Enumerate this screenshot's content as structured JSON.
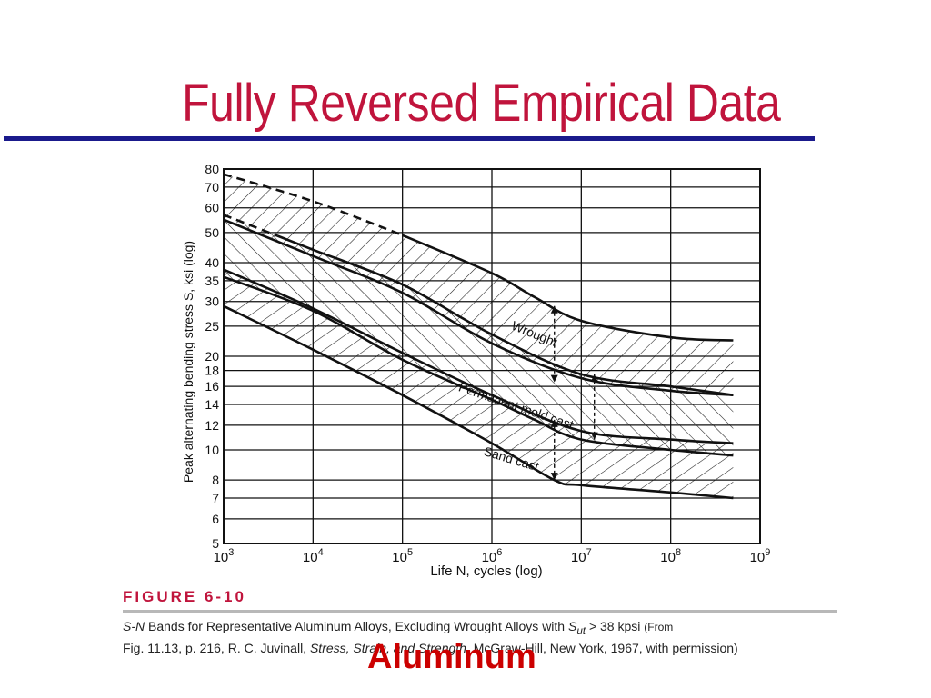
{
  "slide": {
    "title": "Fully Reversed Empirical Data",
    "footer": "Aluminum",
    "title_color": "#c0143c",
    "rule_color": "#1a1a8c"
  },
  "figure": {
    "label": "FIGURE 6-10",
    "caption_lead_italic": "S-N",
    "caption_main": "Bands for Representative Aluminum Alloys, Excluding Wrought Alloys with",
    "caption_symbol": "S",
    "caption_subscript": "ut",
    "caption_limit": "> 38 kpsi",
    "caption_source_1": "(From",
    "caption_source_2": "Fig. 11.13, p. 216, R. C. Juvinall,",
    "caption_book_italic": "Stress, Strain, and Strength",
    "caption_source_3": ". McGraw-Hill, New York, 1967, with permission)"
  },
  "chart_data": {
    "type": "line",
    "x_scale": "log",
    "y_scale": "log",
    "xlim": [
      1000,
      1000000000
    ],
    "ylim": [
      5,
      80
    ],
    "grid": true,
    "xlabel": "Life N, cycles (log)",
    "ylabel": "Peak alternating bending stress S, ksi (log)",
    "x_ticks": [
      {
        "value": 1000,
        "label": "3"
      },
      {
        "value": 10000,
        "label": "4"
      },
      {
        "value": 100000,
        "label": "5"
      },
      {
        "value": 1000000,
        "label": "6"
      },
      {
        "value": 10000000,
        "label": "7"
      },
      {
        "value": 100000000,
        "label": "8"
      },
      {
        "value": 1000000000,
        "label": "9"
      }
    ],
    "y_ticks": [
      5,
      6,
      7,
      8,
      10,
      12,
      14,
      16,
      18,
      20,
      25,
      30,
      35,
      40,
      50,
      60,
      70,
      80
    ],
    "bands": [
      {
        "name": "Wrought",
        "upper": {
          "x": [
            1000,
            10000,
            100000,
            1000000,
            3000000,
            10000000,
            100000000,
            500000000
          ],
          "y": [
            77,
            63,
            49,
            37,
            31,
            26,
            23,
            22.5
          ],
          "dashed_until": 100000
        },
        "lower": {
          "x": [
            1000,
            10000,
            100000,
            1000000,
            10000000,
            100000000,
            500000000
          ],
          "y": [
            55,
            42,
            32,
            22,
            17,
            15.5,
            15
          ]
        }
      },
      {
        "name": "Permanent mold cast",
        "upper": {
          "x": [
            1000,
            10000,
            100000,
            1000000,
            10000000,
            100000000,
            500000000
          ],
          "y": [
            57,
            44,
            34,
            23.5,
            17.5,
            16,
            15
          ],
          "dashed_until": 4000
        },
        "lower": {
          "x": [
            1000,
            10000,
            100000,
            1000000,
            3000000,
            10000000,
            100000000,
            500000000
          ],
          "y": [
            36,
            28,
            19.5,
            14.5,
            12.5,
            10.8,
            10,
            9.6
          ]
        }
      },
      {
        "name": "Sand cast",
        "upper": {
          "x": [
            1000,
            10000,
            100000,
            1000000,
            10000000,
            100000000,
            500000000
          ],
          "y": [
            38,
            28.5,
            20.5,
            15,
            11.5,
            10.8,
            10.5
          ]
        },
        "lower": {
          "x": [
            1000,
            10000,
            100000,
            1000000,
            5000000,
            10000000,
            100000000,
            500000000
          ],
          "y": [
            29,
            21,
            15,
            10.5,
            8,
            7.7,
            7.3,
            7
          ]
        }
      }
    ],
    "scatter_markers": [
      {
        "x": 5000000,
        "y_from": 16.5,
        "y_to": 29
      },
      {
        "x": 14000000,
        "y_from": 10.8,
        "y_to": 17.5
      },
      {
        "x": 5000000,
        "y_from": 8,
        "y_to": 12.5
      }
    ]
  }
}
